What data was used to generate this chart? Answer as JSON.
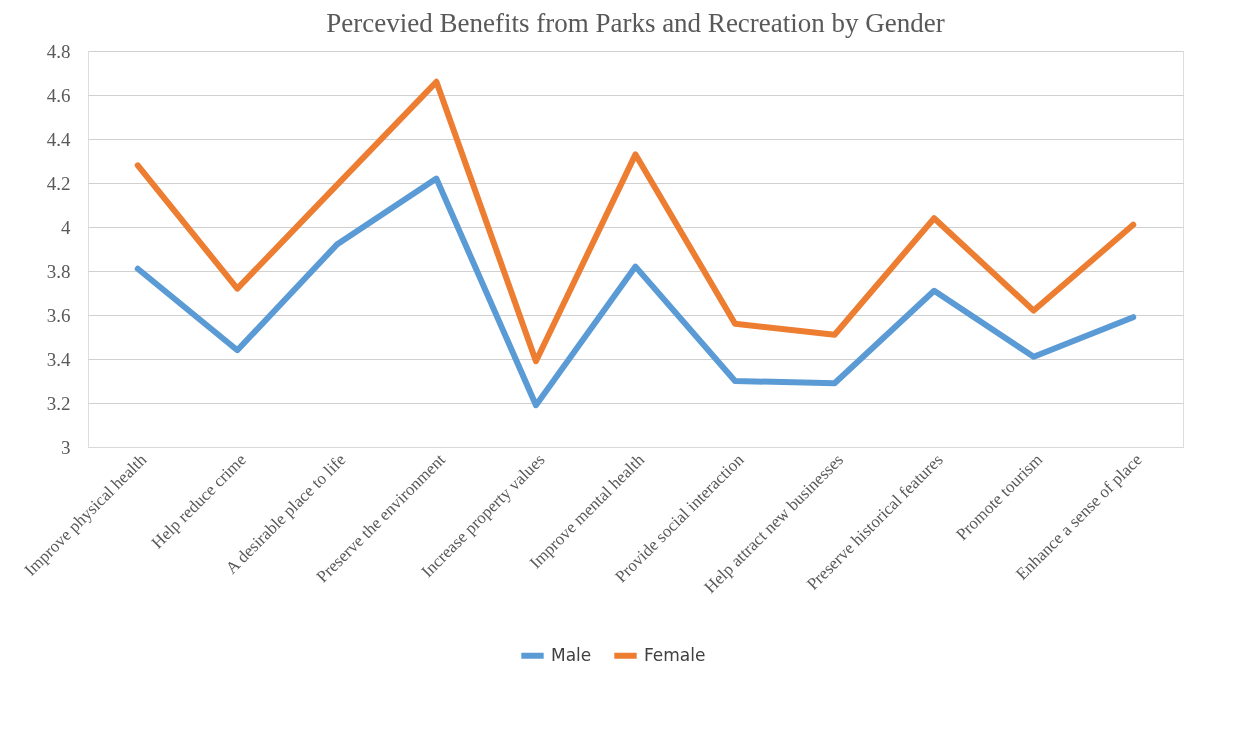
{
  "chart_data": {
    "type": "line",
    "title": "Percevied Benefits from Parks and Recreation by Gender",
    "categories": [
      "Improve physical health",
      "Help reduce crime",
      "A desirable place to life",
      "Preserve the environment",
      "Increase property values",
      "Improve mental health",
      "Provide social interaction",
      "Help attract new businesses",
      "Preserve historical features",
      "Promote tourism",
      "Enhance a sense of place"
    ],
    "series": [
      {
        "name": "Male",
        "color": "#5b9bd5",
        "values": [
          3.81,
          3.44,
          3.92,
          4.22,
          3.19,
          3.82,
          3.3,
          3.29,
          3.71,
          3.41,
          3.59
        ]
      },
      {
        "name": "Female",
        "color": "#ed7d31",
        "values": [
          4.28,
          3.72,
          4.19,
          4.66,
          3.39,
          4.33,
          3.56,
          3.51,
          4.04,
          3.62,
          4.01
        ]
      }
    ],
    "ylim": [
      3,
      4.8
    ],
    "yticks": [
      3,
      3.2,
      3.4,
      3.6,
      3.8,
      4,
      4.2,
      4.4,
      4.6,
      4.8
    ],
    "grid": "y",
    "legend": "bottom",
    "marker": "none",
    "line_style": "solid"
  }
}
